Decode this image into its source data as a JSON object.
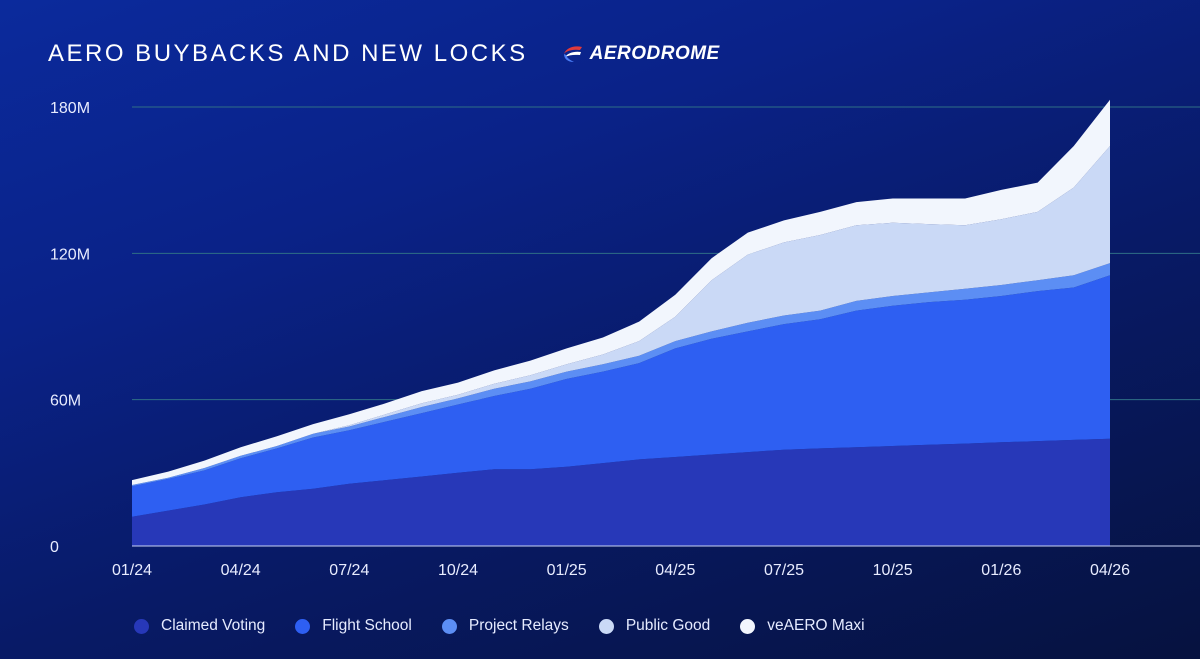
{
  "header": {
    "title": "AERO BUYBACKS AND NEW LOCKS",
    "brand": "AERODROME",
    "brand_icon": "aerodrome-logo-icon"
  },
  "colors": {
    "claimed_voting": "#2738b8",
    "flight_school": "#2e5ff2",
    "project_relays": "#5c8ef4",
    "public_good": "#cad9f6",
    "veaero_maxi": "#f2f6fd",
    "gridline": "#2f6f86",
    "axis_text": "#e8ecff"
  },
  "chart_data": {
    "type": "area",
    "stacked": true,
    "title": "AERO BUYBACKS AND NEW LOCKS",
    "xlabel": "",
    "ylabel": "",
    "x": [
      "01/24",
      "02/24",
      "03/24",
      "04/24",
      "05/24",
      "06/24",
      "07/24",
      "08/24",
      "09/24",
      "10/24",
      "11/24",
      "12/24",
      "01/25",
      "02/25",
      "03/25",
      "04/25",
      "05/25",
      "06/25",
      "07/25",
      "08/25",
      "09/25",
      "10/25",
      "11/25",
      "12/25",
      "01/26",
      "02/26",
      "03/26",
      "04/26"
    ],
    "x_ticks": [
      "01/24",
      "04/24",
      "07/24",
      "10/24",
      "01/25",
      "04/25",
      "07/25",
      "10/25",
      "01/26",
      "04/26"
    ],
    "y_ticks": [
      "0",
      "60M",
      "120M",
      "180M"
    ],
    "ylim": [
      0,
      180000000
    ],
    "grid": true,
    "legend_position": "bottom",
    "series": [
      {
        "name": "Claimed Voting",
        "values": [
          12,
          14.5,
          17,
          20,
          22,
          23.5,
          25.5,
          27,
          28.5,
          30,
          31.5,
          31.5,
          32.5,
          34,
          35.5,
          36.5,
          37.5,
          38.5,
          39.5,
          40,
          40.5,
          41,
          41.5,
          42,
          42.5,
          43,
          43.5,
          44
        ]
      },
      {
        "name": "Flight School",
        "values": [
          12.5,
          13,
          14,
          16,
          18,
          21,
          22,
          24,
          26,
          28,
          30,
          33,
          36,
          37.5,
          39.5,
          44.5,
          47.5,
          49.5,
          51.5,
          53,
          56,
          57.5,
          58.5,
          59,
          60,
          61.5,
          62.5,
          67
        ]
      },
      {
        "name": "Project Relays",
        "values": [
          0.5,
          0.5,
          1,
          1,
          1,
          1.5,
          1.5,
          2,
          2.5,
          2.5,
          3,
          3,
          3,
          3,
          3,
          3,
          3,
          3.5,
          3.5,
          3.5,
          4,
          4,
          4,
          4.5,
          4.5,
          4.5,
          5,
          5
        ]
      },
      {
        "name": "Public Good",
        "values": [
          0,
          0,
          0,
          0,
          0,
          0,
          0.5,
          1,
          1.5,
          1.5,
          2,
          2.5,
          3,
          4,
          6,
          10,
          21,
          28,
          30,
          31,
          31,
          30,
          28,
          26,
          27,
          28,
          36,
          48
        ]
      },
      {
        "name": "veAERO Maxi",
        "values": [
          2,
          2.5,
          3,
          3.5,
          4,
          4,
          4.5,
          4.5,
          5,
          5,
          5.5,
          6,
          6.5,
          7,
          8,
          9,
          9,
          9,
          9,
          9.5,
          9.5,
          10,
          10.5,
          11,
          12,
          12,
          17,
          19
        ]
      }
    ]
  }
}
